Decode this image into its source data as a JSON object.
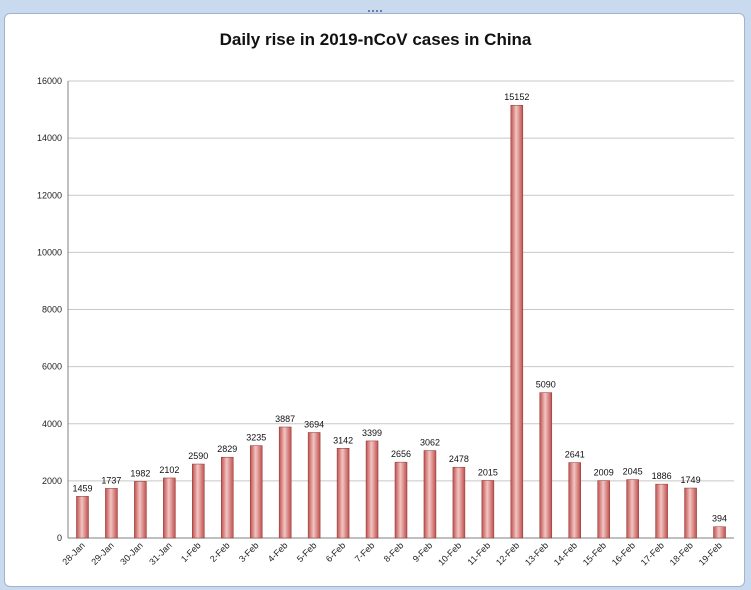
{
  "chart_data": {
    "type": "bar",
    "title": "Daily rise in 2019-nCoV cases in China",
    "xlabel": "",
    "ylabel": "",
    "categories": [
      "28-Jan",
      "29-Jan",
      "30-Jan",
      "31-Jan",
      "1-Feb",
      "2-Feb",
      "3-Feb",
      "4-Feb",
      "5-Feb",
      "6-Feb",
      "7-Feb",
      "8-Feb",
      "9-Feb",
      "10-Feb",
      "11-Feb",
      "12-Feb",
      "13-Feb",
      "14-Feb",
      "15-Feb",
      "16-Feb",
      "17-Feb",
      "18-Feb",
      "19-Feb"
    ],
    "values": [
      1459,
      1737,
      1982,
      2102,
      2590,
      2829,
      3235,
      3887,
      3694,
      3142,
      3399,
      2656,
      3062,
      2478,
      2015,
      15152,
      5090,
      2641,
      2009,
      2045,
      1886,
      1749,
      394
    ],
    "ylim": [
      0,
      16000
    ],
    "yticks": [
      0,
      2000,
      4000,
      6000,
      8000,
      10000,
      12000,
      14000,
      16000
    ],
    "grid": true,
    "legend": "none",
    "bar_color": "#c0504d",
    "bar_light_color": "#f2c5c3",
    "grid_color": "#c8c8c8"
  }
}
